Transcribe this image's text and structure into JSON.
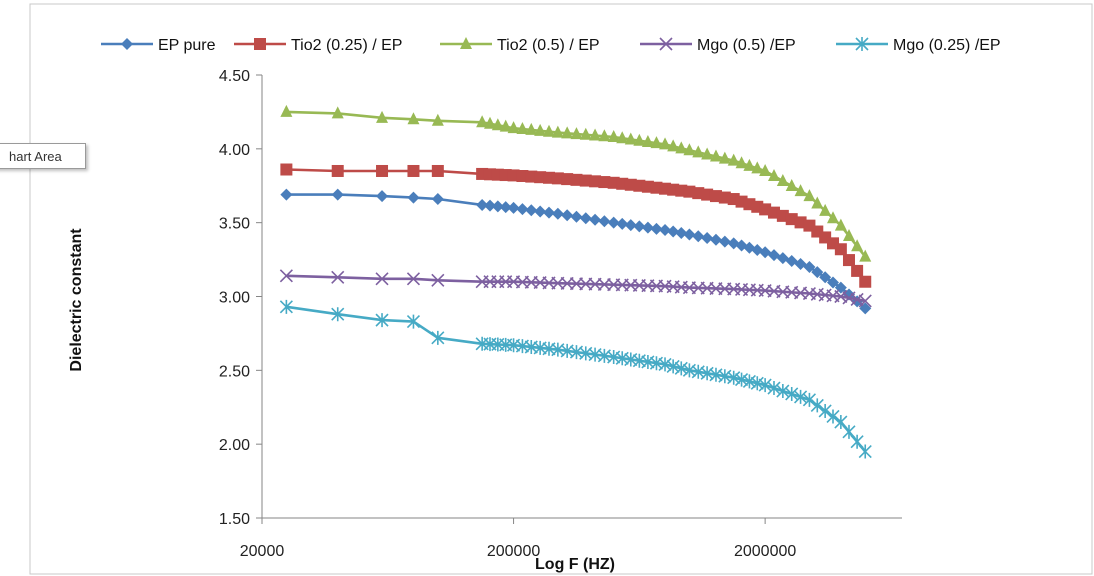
{
  "tooltip": {
    "label": "hart Area"
  },
  "chart_data": {
    "type": "line",
    "xlabel": "Log F (HZ)",
    "ylabel": "Dielectric constant",
    "xscale": "log",
    "xlim": [
      20000,
      7000000
    ],
    "ylim": [
      1.5,
      4.5
    ],
    "x_ticks": [
      "20000",
      "200000",
      "2000000"
    ],
    "y_ticks": [
      "1.50",
      "2.00",
      "2.50",
      "3.00",
      "3.50",
      "4.00",
      "4.50"
    ],
    "legend_position": "top",
    "grid": false,
    "series": [
      {
        "name": "EP pure",
        "color": "#4a7ebb",
        "marker": "diamond",
        "points": [
          [
            25000,
            3.69
          ],
          [
            40000,
            3.69
          ],
          [
            60000,
            3.68
          ],
          [
            80000,
            3.67
          ],
          [
            100000,
            3.66
          ],
          [
            150000,
            3.62
          ],
          [
            200000,
            3.6
          ],
          [
            300000,
            3.56
          ],
          [
            500000,
            3.5
          ],
          [
            800000,
            3.45
          ],
          [
            1000000,
            3.42
          ],
          [
            1500000,
            3.36
          ],
          [
            2000000,
            3.3
          ],
          [
            3000000,
            3.2
          ],
          [
            4000000,
            3.06
          ],
          [
            5000000,
            2.92
          ]
        ]
      },
      {
        "name": "Tio2 (0.25) / EP",
        "color": "#be4b48",
        "marker": "square",
        "points": [
          [
            25000,
            3.86
          ],
          [
            40000,
            3.85
          ],
          [
            60000,
            3.85
          ],
          [
            80000,
            3.85
          ],
          [
            100000,
            3.85
          ],
          [
            150000,
            3.83
          ],
          [
            200000,
            3.82
          ],
          [
            300000,
            3.8
          ],
          [
            500000,
            3.77
          ],
          [
            800000,
            3.73
          ],
          [
            1000000,
            3.71
          ],
          [
            1500000,
            3.66
          ],
          [
            2000000,
            3.59
          ],
          [
            3000000,
            3.48
          ],
          [
            4000000,
            3.32
          ],
          [
            5000000,
            3.1
          ]
        ]
      },
      {
        "name": "Tio2 (0.5) / EP",
        "color": "#98b954",
        "marker": "triangle",
        "points": [
          [
            25000,
            4.25
          ],
          [
            40000,
            4.24
          ],
          [
            60000,
            4.21
          ],
          [
            80000,
            4.2
          ],
          [
            100000,
            4.19
          ],
          [
            150000,
            4.18
          ],
          [
            200000,
            4.14
          ],
          [
            300000,
            4.11
          ],
          [
            500000,
            4.08
          ],
          [
            800000,
            4.03
          ],
          [
            1000000,
            3.99
          ],
          [
            1500000,
            3.92
          ],
          [
            2000000,
            3.85
          ],
          [
            3000000,
            3.68
          ],
          [
            4000000,
            3.48
          ],
          [
            5000000,
            3.27
          ]
        ]
      },
      {
        "name": "Mgo (0.5) /EP",
        "color": "#7d60a0",
        "marker": "x",
        "points": [
          [
            25000,
            3.14
          ],
          [
            40000,
            3.13
          ],
          [
            60000,
            3.12
          ],
          [
            80000,
            3.12
          ],
          [
            100000,
            3.11
          ],
          [
            150000,
            3.1
          ],
          [
            200000,
            3.1
          ],
          [
            300000,
            3.09
          ],
          [
            500000,
            3.08
          ],
          [
            800000,
            3.07
          ],
          [
            1000000,
            3.06
          ],
          [
            1500000,
            3.05
          ],
          [
            2000000,
            3.04
          ],
          [
            3000000,
            3.02
          ],
          [
            4000000,
            3.0
          ],
          [
            5000000,
            2.97
          ]
        ]
      },
      {
        "name": "Mgo (0.25) /EP",
        "color": "#46aac5",
        "marker": "asterisk",
        "points": [
          [
            25000,
            2.93
          ],
          [
            40000,
            2.88
          ],
          [
            60000,
            2.84
          ],
          [
            80000,
            2.83
          ],
          [
            100000,
            2.72
          ],
          [
            150000,
            2.68
          ],
          [
            200000,
            2.67
          ],
          [
            300000,
            2.64
          ],
          [
            500000,
            2.59
          ],
          [
            800000,
            2.54
          ],
          [
            1000000,
            2.5
          ],
          [
            1500000,
            2.45
          ],
          [
            2000000,
            2.4
          ],
          [
            3000000,
            2.3
          ],
          [
            4000000,
            2.15
          ],
          [
            5000000,
            1.95
          ]
        ]
      }
    ]
  }
}
